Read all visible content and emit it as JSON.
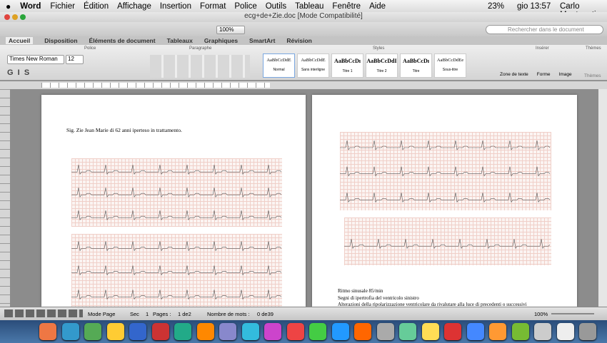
{
  "menu_bar": {
    "app": "Word",
    "items": [
      "Fichier",
      "Édition",
      "Affichage",
      "Insertion",
      "Format",
      "Police",
      "Outils",
      "Tableau",
      "Fenêtre",
      "Aide"
    ],
    "battery": "23%",
    "clock": "gio 13:57",
    "user": "Carlo Montaguti"
  },
  "window": {
    "title": "ecg+de+Zie.doc [Mode Compatibilité]",
    "search_placeholder": "Rechercher dans le document",
    "zoom": "100%"
  },
  "ribbon": {
    "tabs": [
      "Accueil",
      "Disposition",
      "Éléments de document",
      "Tableaux",
      "Graphiques",
      "SmartArt",
      "Révision"
    ],
    "groups": [
      "Police",
      "Paragraphe",
      "Styles",
      "Insérer",
      "Thèmes"
    ],
    "font_name": "Times New Roman",
    "font_size": "12",
    "styles": [
      {
        "preview": "AaBbCcDdE",
        "name": "Normal"
      },
      {
        "preview": "AaBbCcDdE",
        "name": "Sans interligne"
      },
      {
        "preview": "AaBbCcDı",
        "name": "Titre 1"
      },
      {
        "preview": "AaBbCcDdI",
        "name": "Titre 2"
      },
      {
        "preview": "AaBbCcDı",
        "name": "Titre"
      },
      {
        "preview": "AaBbCcDdEe",
        "name": "Sous-titre"
      }
    ],
    "insert_items": [
      "Zone de texte",
      "Forme",
      "Image"
    ],
    "themes_button": "Thèmes"
  },
  "document": {
    "page1_text": "Sig. Zie Jean Marie di 62 anni iperteso in trattamento.",
    "page2_lines": [
      "Ritmo sinusale 85/min",
      "Segni di ipertrofia del ventricolo sinistro",
      "Alterazioni della ripolarizzazione ventricolare da rivalutare alla luce di precedenti o successivi"
    ]
  },
  "status_bar": {
    "view": "Mode Page",
    "section_label": "Sec",
    "section": "1",
    "pages_label": "Pages :",
    "pages": "1 de2",
    "words_label": "Nombre de mots :",
    "words": "0 de39",
    "zoom": "100%"
  }
}
